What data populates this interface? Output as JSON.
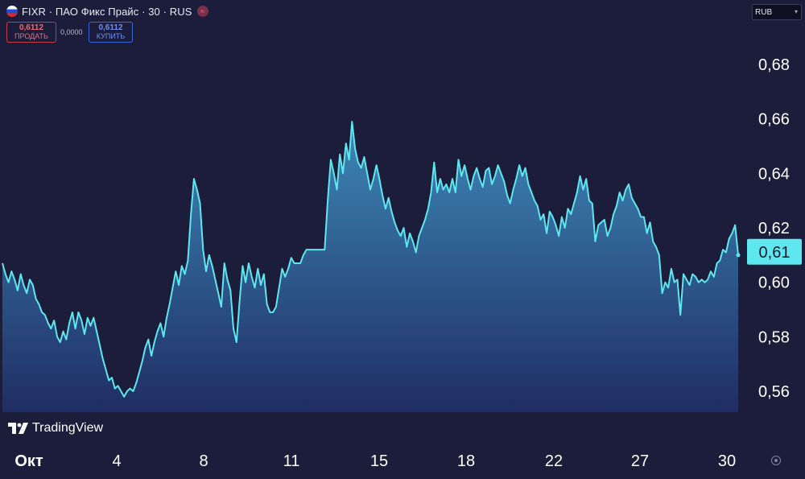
{
  "header": {
    "title": "FIXR · ПАО Фикс Прайс · 30 · RUS",
    "flag": "russia-flag-icon",
    "live_icon": "≈"
  },
  "trade": {
    "sell_price": "0,6112",
    "sell_label": "ПРОДАТЬ",
    "spread": "0,0000",
    "buy_price": "0,6112",
    "buy_label": "КУПИТЬ"
  },
  "currency": {
    "value": "RUB"
  },
  "branding": {
    "name": "TradingView"
  },
  "colors": {
    "background": "#1c1d3a",
    "line": "#5ee7ef",
    "area_top": "#3e88b8",
    "area_bottom": "#1f2d63",
    "sell": "#c23b46",
    "buy": "#3a63d8",
    "badge": "#5ee7ef"
  },
  "chart_data": {
    "type": "area",
    "x_tick_labels": [
      "Окт",
      "4",
      "8",
      "11",
      "15",
      "18",
      "22",
      "27",
      "30"
    ],
    "y_tick_labels": [
      "0,68",
      "0,66",
      "0,64",
      "0,62",
      "0,60",
      "0,58",
      "0,56"
    ],
    "ylim": [
      0.55,
      0.69
    ],
    "last_value_label": "0,61",
    "last_value": 0.6112,
    "grid": false,
    "series": [
      {
        "values": [
          0.607,
          0.603,
          0.6,
          0.604,
          0.601,
          0.597,
          0.603,
          0.599,
          0.596,
          0.601,
          0.599,
          0.594,
          0.592,
          0.589,
          0.588,
          0.585,
          0.583,
          0.586,
          0.58,
          0.578,
          0.582,
          0.579,
          0.585,
          0.589,
          0.583,
          0.589,
          0.586,
          0.581,
          0.587,
          0.584,
          0.587,
          0.582,
          0.577,
          0.572,
          0.568,
          0.564,
          0.565,
          0.561,
          0.562,
          0.56,
          0.558,
          0.56,
          0.561,
          0.56,
          0.563,
          0.567,
          0.571,
          0.576,
          0.579,
          0.573,
          0.578,
          0.582,
          0.585,
          0.58,
          0.587,
          0.592,
          0.598,
          0.604,
          0.599,
          0.606,
          0.603,
          0.608,
          0.625,
          0.638,
          0.634,
          0.629,
          0.612,
          0.604,
          0.61,
          0.606,
          0.601,
          0.596,
          0.591,
          0.607,
          0.601,
          0.597,
          0.583,
          0.578,
          0.593,
          0.606,
          0.6,
          0.607,
          0.602,
          0.598,
          0.605,
          0.599,
          0.603,
          0.592,
          0.589,
          0.589,
          0.591,
          0.598,
          0.605,
          0.602,
          0.605,
          0.609,
          0.607,
          0.607,
          0.607,
          0.61,
          0.612,
          0.612,
          0.612,
          0.612,
          0.612,
          0.612,
          0.612,
          0.63,
          0.645,
          0.64,
          0.634,
          0.647,
          0.64,
          0.651,
          0.645,
          0.659,
          0.649,
          0.644,
          0.642,
          0.646,
          0.64,
          0.634,
          0.638,
          0.643,
          0.638,
          0.632,
          0.627,
          0.631,
          0.626,
          0.622,
          0.619,
          0.617,
          0.62,
          0.613,
          0.618,
          0.615,
          0.611,
          0.617,
          0.62,
          0.623,
          0.627,
          0.633,
          0.644,
          0.633,
          0.638,
          0.634,
          0.636,
          0.633,
          0.638,
          0.633,
          0.645,
          0.639,
          0.643,
          0.638,
          0.634,
          0.639,
          0.642,
          0.638,
          0.635,
          0.641,
          0.642,
          0.636,
          0.639,
          0.643,
          0.64,
          0.637,
          0.632,
          0.629,
          0.634,
          0.638,
          0.643,
          0.639,
          0.642,
          0.636,
          0.633,
          0.63,
          0.628,
          0.623,
          0.625,
          0.618,
          0.626,
          0.624,
          0.621,
          0.617,
          0.624,
          0.62,
          0.627,
          0.625,
          0.629,
          0.633,
          0.639,
          0.634,
          0.638,
          0.63,
          0.629,
          0.615,
          0.621,
          0.622,
          0.623,
          0.617,
          0.62,
          0.625,
          0.628,
          0.633,
          0.63,
          0.634,
          0.636,
          0.631,
          0.629,
          0.627,
          0.624,
          0.624,
          0.618,
          0.622,
          0.615,
          0.613,
          0.61,
          0.596,
          0.6,
          0.598,
          0.605,
          0.6,
          0.601,
          0.588,
          0.603,
          0.601,
          0.599,
          0.603,
          0.602,
          0.6,
          0.601,
          0.6,
          0.601,
          0.604,
          0.602,
          0.607,
          0.608,
          0.612,
          0.611,
          0.616,
          0.618,
          0.621,
          0.61
        ]
      }
    ]
  }
}
